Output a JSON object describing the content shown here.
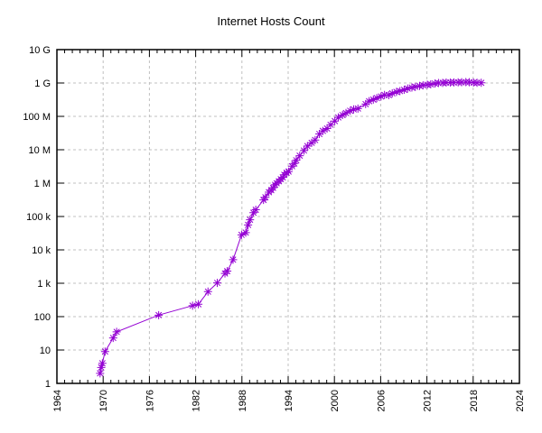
{
  "chart_data": {
    "type": "line",
    "title": "Internet Hosts Count",
    "xlabel": "",
    "ylabel": "",
    "legend": "none",
    "grid": true,
    "x_scale": "linear",
    "y_scale": "log10",
    "xlim": [
      1964,
      2024
    ],
    "ylim": [
      1,
      10000000000
    ],
    "x_major_ticks": [
      1964,
      1970,
      1976,
      1982,
      1988,
      1994,
      2000,
      2006,
      2012,
      2018,
      2024
    ],
    "x_minor_tick_step": 1,
    "y_major_ticks": [
      {
        "label": "1",
        "value": 1
      },
      {
        "label": "10",
        "value": 10
      },
      {
        "label": "100",
        "value": 100
      },
      {
        "label": "1 k",
        "value": 1000
      },
      {
        "label": "10 k",
        "value": 10000
      },
      {
        "label": "100 k",
        "value": 100000
      },
      {
        "label": "1 M",
        "value": 1000000
      },
      {
        "label": "10 M",
        "value": 10000000
      },
      {
        "label": "100 M",
        "value": 100000000
      },
      {
        "label": "1 G",
        "value": 1000000000
      },
      {
        "label": "10 G",
        "value": 10000000000
      }
    ],
    "colors": {
      "series": "#9400d3",
      "grid": "#c0c0c0",
      "frame": "#000000",
      "text": "#000000",
      "background": "#ffffff"
    },
    "marker": "asterisk",
    "series": [
      {
        "name": "Internet hosts",
        "color": "#9400d3",
        "points": [
          [
            1969.6,
            2
          ],
          [
            1969.75,
            3
          ],
          [
            1969.9,
            4
          ],
          [
            1970.25,
            9
          ],
          [
            1971.3,
            23
          ],
          [
            1971.75,
            35
          ],
          [
            1977.2,
            111
          ],
          [
            1981.6,
            213
          ],
          [
            1982.35,
            235
          ],
          [
            1983.6,
            562
          ],
          [
            1984.8,
            1024
          ],
          [
            1985.8,
            1961
          ],
          [
            1986.1,
            2308
          ],
          [
            1986.85,
            5089
          ],
          [
            1987.95,
            28174
          ],
          [
            1988.5,
            33000
          ],
          [
            1988.8,
            56000
          ],
          [
            1989.05,
            80000
          ],
          [
            1989.5,
            130000
          ],
          [
            1989.8,
            159000
          ],
          [
            1990.8,
            313000
          ],
          [
            1991.05,
            376000
          ],
          [
            1991.5,
            535000
          ],
          [
            1991.8,
            617000
          ],
          [
            1992.05,
            727000
          ],
          [
            1992.3,
            890000
          ],
          [
            1992.5,
            992000
          ],
          [
            1992.8,
            1136000
          ],
          [
            1993.05,
            1313000
          ],
          [
            1993.3,
            1486000
          ],
          [
            1993.5,
            1776000
          ],
          [
            1993.8,
            2056000
          ],
          [
            1994.05,
            2217000
          ],
          [
            1994.5,
            3212000
          ],
          [
            1994.8,
            3864000
          ],
          [
            1995.05,
            4852000
          ],
          [
            1995.5,
            6642000
          ],
          [
            1996.05,
            9472000
          ],
          [
            1996.5,
            12881000
          ],
          [
            1997.05,
            16146000
          ],
          [
            1997.5,
            19540000
          ],
          [
            1998.05,
            29670000
          ],
          [
            1998.5,
            36739000
          ],
          [
            1999.05,
            43230000
          ],
          [
            1999.5,
            56218000
          ],
          [
            2000.05,
            72398092
          ],
          [
            2000.5,
            93047785
          ],
          [
            2001.05,
            109574429
          ],
          [
            2001.5,
            125888197
          ],
          [
            2002.05,
            147344723
          ],
          [
            2002.5,
            162128493
          ],
          [
            2003.05,
            171638297
          ],
          [
            2004.05,
            233101481
          ],
          [
            2004.5,
            285139107
          ],
          [
            2005.05,
            317646084
          ],
          [
            2005.5,
            353284187
          ],
          [
            2006.05,
            394991609
          ],
          [
            2006.5,
            439286364
          ],
          [
            2007.05,
            433193199
          ],
          [
            2007.5,
            489774269
          ],
          [
            2008.05,
            541677360
          ],
          [
            2008.5,
            570937778
          ],
          [
            2009.05,
            625226456
          ],
          [
            2009.5,
            681064561
          ],
          [
            2010.05,
            732740444
          ],
          [
            2010.5,
            768913036
          ],
          [
            2011.05,
            818374269
          ],
          [
            2011.5,
            849869781
          ],
          [
            2012.05,
            888239420
          ],
          [
            2012.5,
            908585739
          ],
          [
            2013.05,
            963518598
          ],
          [
            2013.5,
            996230757
          ],
          [
            2014.05,
            1010251829
          ],
          [
            2014.5,
            1028544414
          ],
          [
            2015.05,
            1033836473
          ],
          [
            2015.5,
            1038639643
          ],
          [
            2016.05,
            1048766623
          ],
          [
            2016.5,
            1052813307
          ],
          [
            2017.05,
            1062660523
          ],
          [
            2017.5,
            1055000000
          ],
          [
            2018.05,
            1030000000
          ],
          [
            2018.5,
            1015000000
          ],
          [
            2019.05,
            1012706608
          ]
        ]
      }
    ]
  }
}
